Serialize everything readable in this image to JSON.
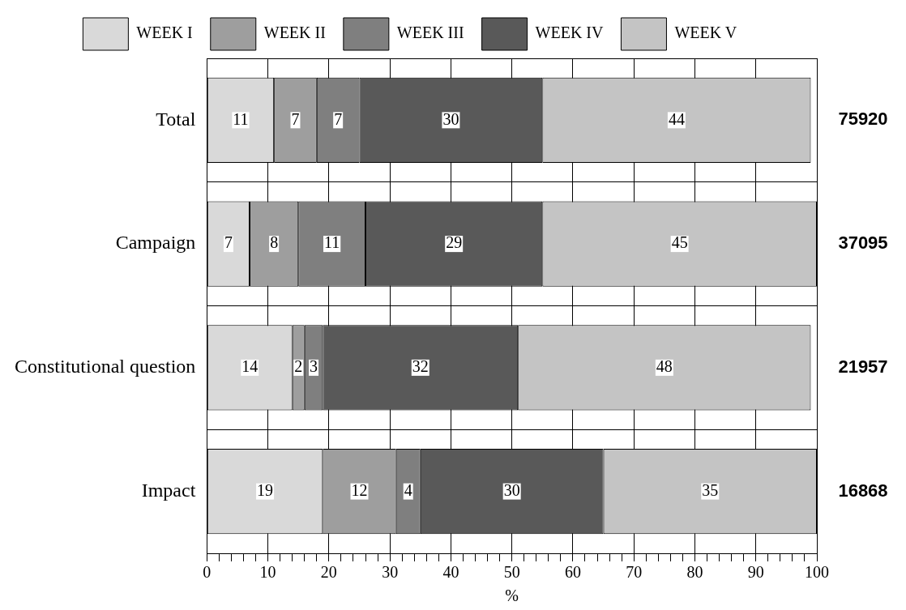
{
  "chart_data": {
    "type": "bar",
    "orientation": "horizontal",
    "stacked": true,
    "categories": [
      "Total",
      "Campaign",
      "Constitutional question",
      "Impact"
    ],
    "series": [
      {
        "name": "WEEK I",
        "color": "#d9d9d9",
        "values": [
          11,
          7,
          14,
          19
        ]
      },
      {
        "name": "WEEK II",
        "color": "#9e9e9e",
        "values": [
          7,
          8,
          2,
          12
        ]
      },
      {
        "name": "WEEK III",
        "color": "#7f7f7f",
        "values": [
          7,
          11,
          3,
          4
        ]
      },
      {
        "name": "WEEK IV",
        "color": "#595959",
        "values": [
          30,
          29,
          32,
          30
        ]
      },
      {
        "name": "WEEK V",
        "color": "#c4c4c4",
        "values": [
          44,
          45,
          48,
          35
        ]
      }
    ],
    "data_labels": true,
    "annotations": [
      "75920",
      "37095",
      "21957",
      "16868"
    ],
    "xlabel": "%",
    "xlim": [
      0,
      100
    ],
    "xticks": [
      0,
      {
        "value": 2,
        "label": null
      },
      {
        "value": 4,
        "label": null
      },
      {
        "value": 6,
        "label": null
      },
      {
        "value": 8,
        "label": null
      },
      10,
      {
        "value": 12,
        "label": null
      },
      {
        "value": 14,
        "label": null
      },
      {
        "value": 16,
        "label": null
      },
      {
        "value": 18,
        "label": null
      },
      20,
      {
        "value": 22,
        "label": null
      },
      {
        "value": 24,
        "label": null
      },
      {
        "value": 26,
        "label": null
      },
      {
        "value": 28,
        "label": null
      },
      30,
      {
        "value": 32,
        "label": null
      },
      {
        "value": 34,
        "label": null
      },
      {
        "value": 36,
        "label": null
      },
      {
        "value": 38,
        "label": null
      },
      40,
      {
        "value": 42,
        "label": null
      },
      {
        "value": 44,
        "label": null
      },
      {
        "value": 46,
        "label": null
      },
      {
        "value": 48,
        "label": null
      },
      50,
      {
        "value": 52,
        "label": null
      },
      {
        "value": 54,
        "label": null
      },
      {
        "value": 56,
        "label": null
      },
      {
        "value": 58,
        "label": null
      },
      60,
      {
        "value": 62,
        "label": null
      },
      {
        "value": 64,
        "label": null
      },
      {
        "value": 66,
        "label": null
      },
      {
        "value": 68,
        "label": null
      },
      70,
      {
        "value": 72,
        "label": null
      },
      {
        "value": 74,
        "label": null
      },
      {
        "value": 76,
        "label": null
      },
      {
        "value": 78,
        "label": null
      },
      80,
      {
        "value": 82,
        "label": null
      },
      {
        "value": 84,
        "label": null
      },
      {
        "value": 86,
        "label": null
      },
      {
        "value": 88,
        "label": null
      },
      90,
      {
        "value": 92,
        "label": null
      },
      {
        "value": 94,
        "label": null
      },
      {
        "value": 96,
        "label": null
      },
      {
        "value": 98,
        "label": null
      },
      100
    ],
    "grid": true,
    "legend": "top"
  }
}
